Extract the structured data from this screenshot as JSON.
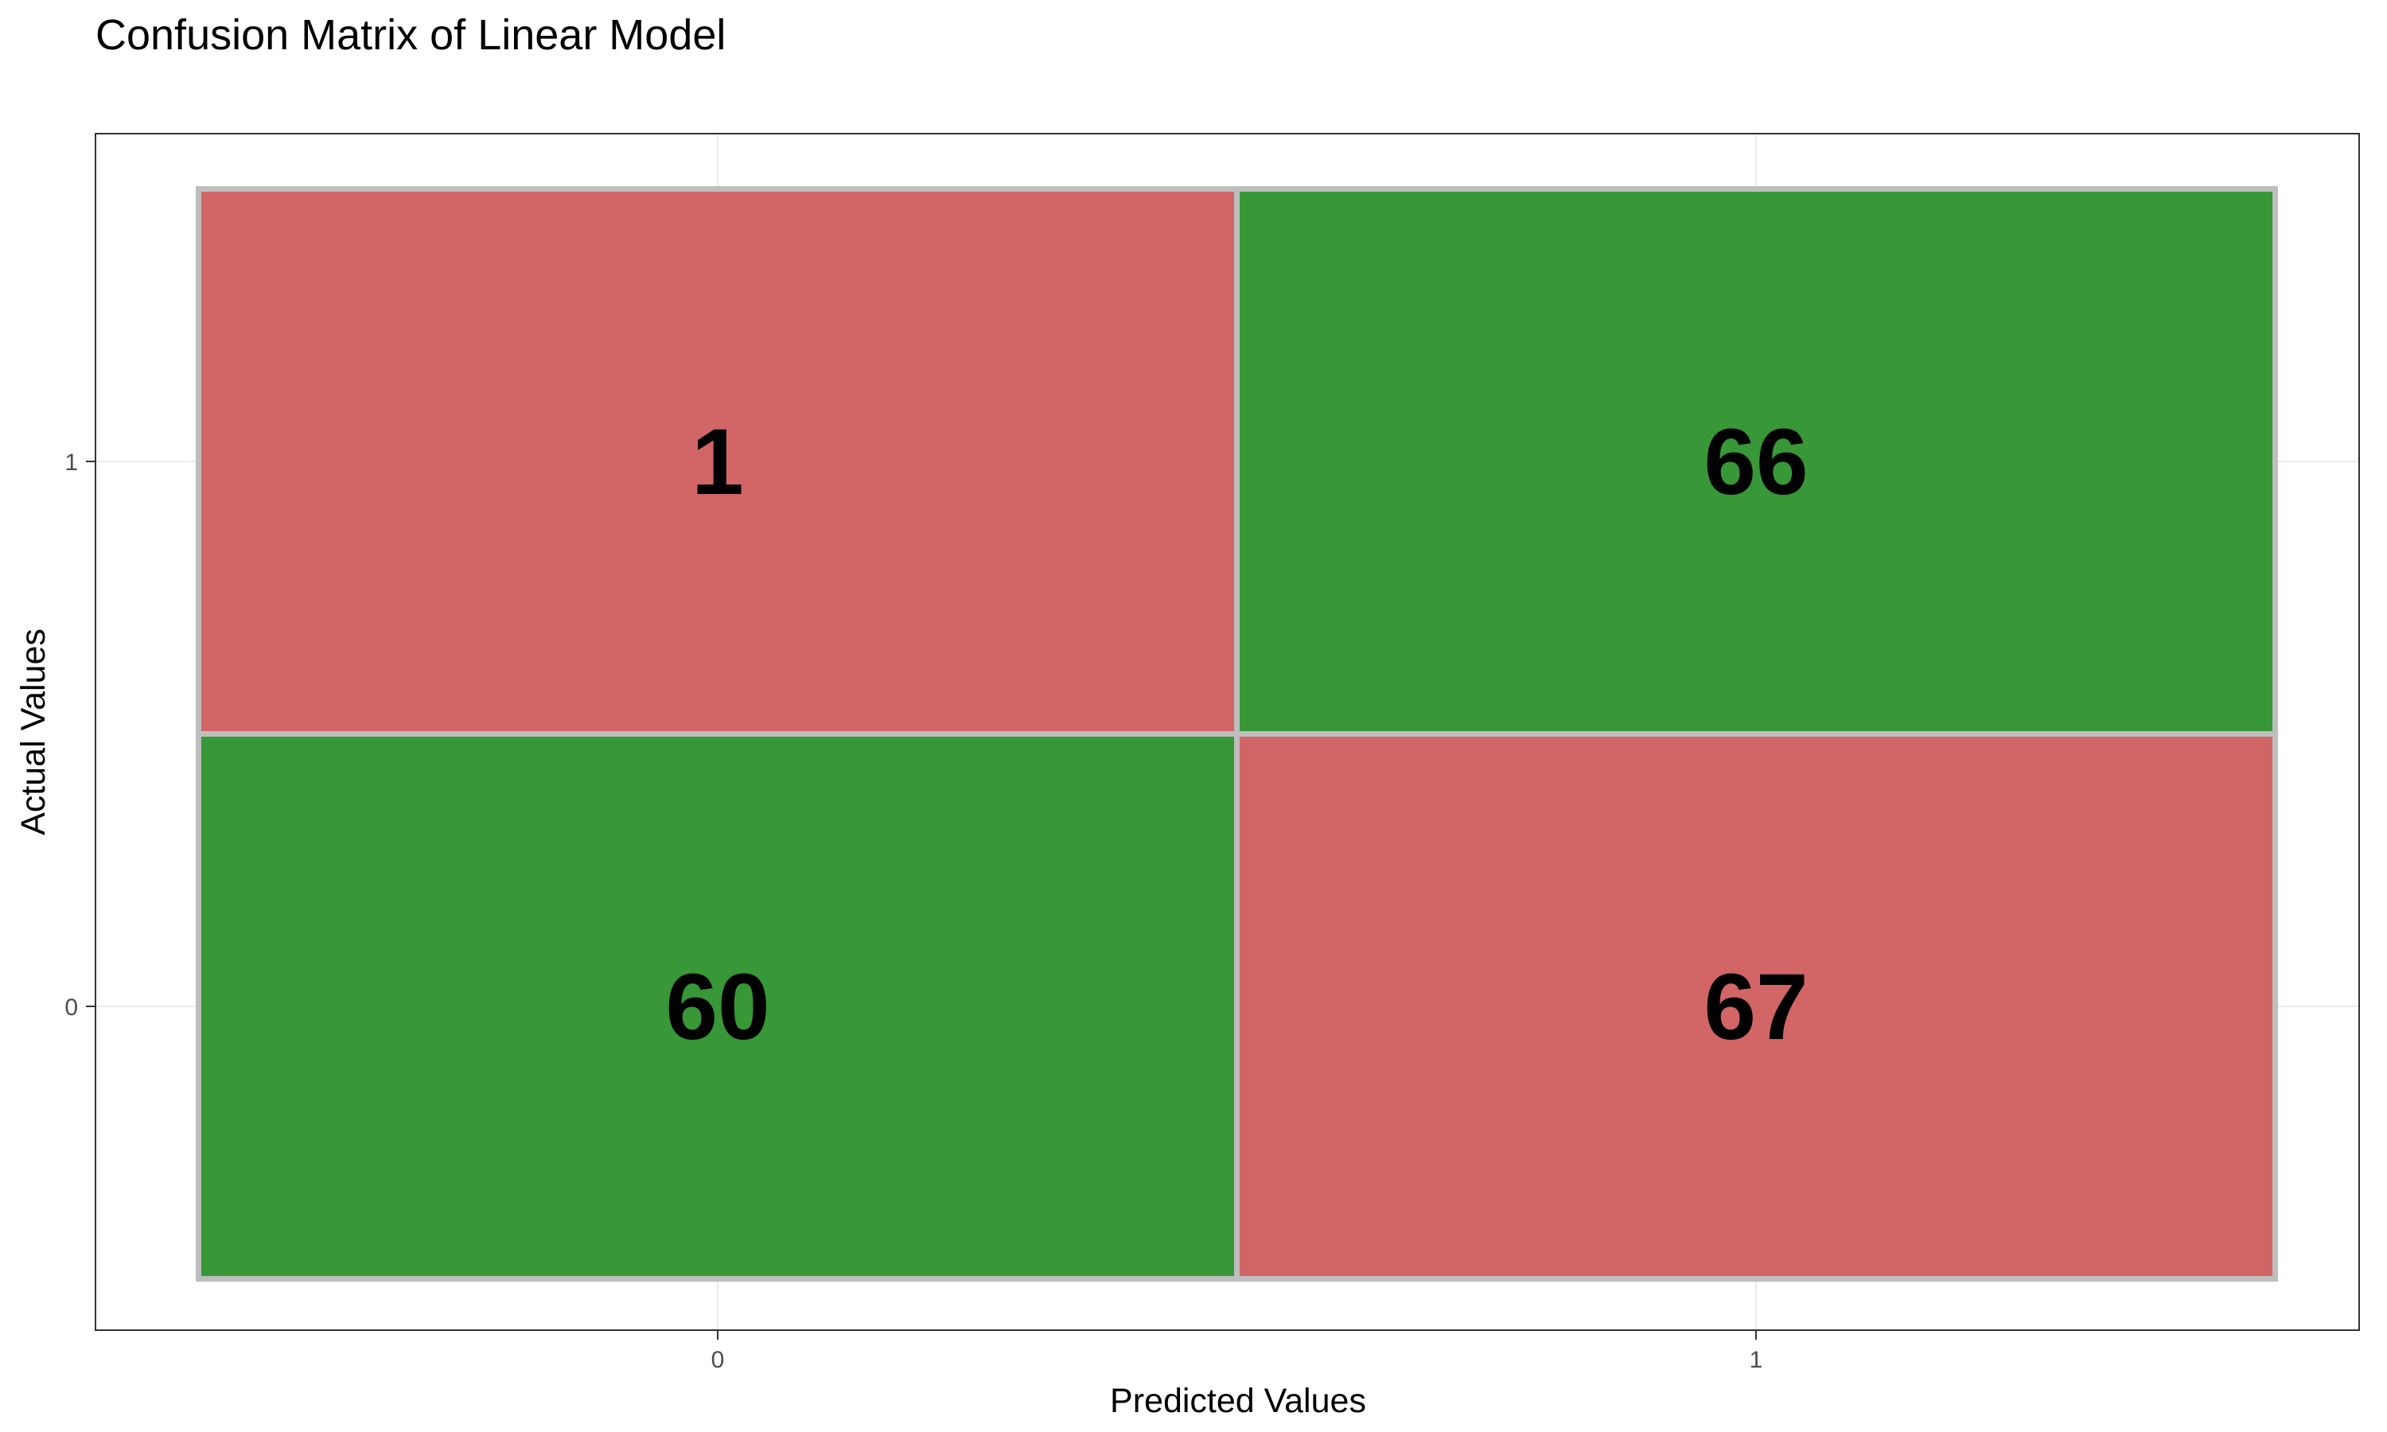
{
  "chart_data": {
    "type": "heatmap",
    "title": "Confusion Matrix of Linear Model",
    "xlabel": "Predicted Values",
    "ylabel": "Actual Values",
    "x_categories": [
      "0",
      "1"
    ],
    "y_categories": [
      "0",
      "1"
    ],
    "grid": true,
    "legend": "none",
    "cells": [
      {
        "predicted": "0",
        "actual": "1",
        "value": 1,
        "color": "#d26565"
      },
      {
        "predicted": "1",
        "actual": "1",
        "value": 66,
        "color": "#389737"
      },
      {
        "predicted": "0",
        "actual": "0",
        "value": 60,
        "color": "#389737"
      },
      {
        "predicted": "1",
        "actual": "0",
        "value": 67,
        "color": "#d26565"
      }
    ],
    "colors": {
      "correct": "#389737",
      "incorrect": "#d26565",
      "tile_border": "#bebebe",
      "panel_border": "#333333",
      "gridline": "#ebebeb"
    }
  }
}
